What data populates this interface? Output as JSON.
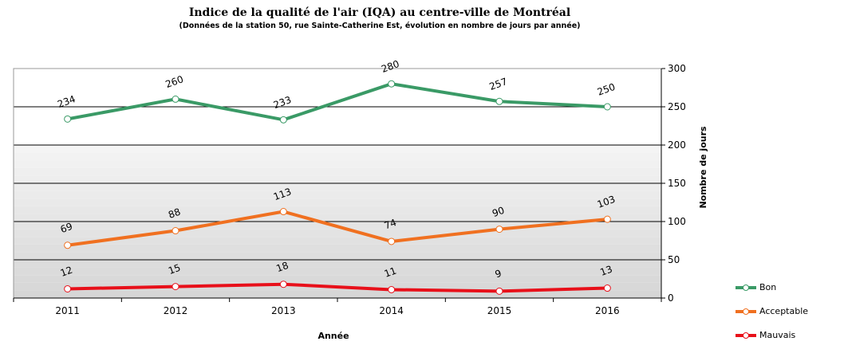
{
  "chart_data": {
    "type": "line",
    "title": "Indice de la qualité  de l'air (IQA) au centre-ville  de Montréal",
    "subtitle": "(Données de la station 50, rue Sainte-Catherine Est, évolution en nombre de jours par année)",
    "xlabel": "Année",
    "ylabel": "Nombre de jours",
    "categories": [
      "2011",
      "2012",
      "2013",
      "2014",
      "2015",
      "2016"
    ],
    "ylim": [
      0,
      300
    ],
    "yticks": [
      0,
      50,
      100,
      150,
      200,
      250,
      300
    ],
    "y_axis_side": "right",
    "grid": true,
    "legend_position": "right",
    "series": [
      {
        "name": "Bon",
        "color": "#3a9a66",
        "values": [
          234,
          260,
          233,
          280,
          257,
          250
        ]
      },
      {
        "name": "Acceptable",
        "color": "#f07020",
        "values": [
          69,
          88,
          113,
          74,
          90,
          103
        ]
      },
      {
        "name": "Mauvais",
        "color": "#e8101a",
        "values": [
          12,
          15,
          18,
          11,
          9,
          13
        ]
      }
    ]
  }
}
